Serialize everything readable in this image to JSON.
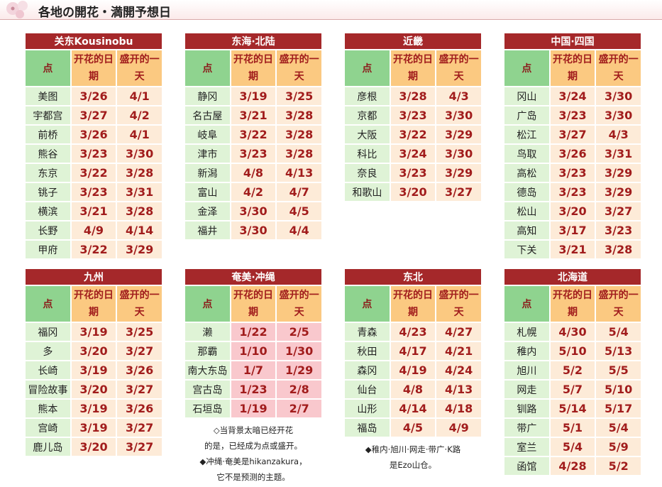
{
  "header": {
    "title": "各地の開花・満開予想日"
  },
  "regions": [
    {
      "name": "关东Kousinobu",
      "columns": [
        "点",
        "开花的日期",
        "盛开的一天"
      ],
      "date_color": "#fdebd8",
      "rows": [
        [
          "美图",
          "3/26",
          "4/1"
        ],
        [
          "宇都宫",
          "3/27",
          "4/2"
        ],
        [
          "前桥",
          "3/26",
          "4/1"
        ],
        [
          "熊谷",
          "3/23",
          "3/30"
        ],
        [
          "东京",
          "3/22",
          "3/28"
        ],
        [
          "铫子",
          "3/23",
          "3/31"
        ],
        [
          "横滨",
          "3/21",
          "3/28"
        ],
        [
          "长野",
          "4/9",
          "4/14"
        ],
        [
          "甲府",
          "3/22",
          "3/29"
        ]
      ]
    },
    {
      "name": "东海·北陆",
      "columns": [
        "点",
        "开花的日期",
        "盛开的一天"
      ],
      "date_color": "#fdebd8",
      "rows": [
        [
          "静冈",
          "3/19",
          "3/25"
        ],
        [
          "名古屋",
          "3/21",
          "3/28"
        ],
        [
          "岐阜",
          "3/22",
          "3/28"
        ],
        [
          "津市",
          "3/23",
          "3/28"
        ],
        [
          "新潟",
          "4/8",
          "4/13"
        ],
        [
          "富山",
          "4/2",
          "4/7"
        ],
        [
          "金泽",
          "3/30",
          "4/5"
        ],
        [
          "福井",
          "3/30",
          "4/4"
        ]
      ]
    },
    {
      "name": "近畿",
      "columns": [
        "点",
        "开花的日期",
        "盛开的一天"
      ],
      "date_color": "#fdebd8",
      "rows": [
        [
          "彦根",
          "3/28",
          "4/3"
        ],
        [
          "京都",
          "3/23",
          "3/30"
        ],
        [
          "大阪",
          "3/22",
          "3/29"
        ],
        [
          "科比",
          "3/24",
          "3/30"
        ],
        [
          "奈良",
          "3/23",
          "3/29"
        ],
        [
          "和歌山",
          "3/20",
          "3/27"
        ]
      ]
    },
    {
      "name": "中国·四国",
      "columns": [
        "点",
        "开花的日期",
        "盛开的一天"
      ],
      "date_color": "#fdebd8",
      "rows": [
        [
          "冈山",
          "3/24",
          "3/30"
        ],
        [
          "广岛",
          "3/23",
          "3/30"
        ],
        [
          "松江",
          "3/27",
          "4/3"
        ],
        [
          "鸟取",
          "3/26",
          "3/31"
        ],
        [
          "高松",
          "3/23",
          "3/29"
        ],
        [
          "德岛",
          "3/23",
          "3/29"
        ],
        [
          "松山",
          "3/20",
          "3/27"
        ],
        [
          "高知",
          "3/17",
          "3/23"
        ],
        [
          "下关",
          "3/21",
          "3/28"
        ]
      ]
    },
    {
      "name": "九州",
      "columns": [
        "点",
        "开花的日期",
        "盛开的一天"
      ],
      "date_color": "#fdebd8",
      "rows": [
        [
          "福冈",
          "3/19",
          "3/25"
        ],
        [
          "多",
          "3/20",
          "3/27"
        ],
        [
          "长崎",
          "3/19",
          "3/26"
        ],
        [
          "冒险故事",
          "3/20",
          "3/27"
        ],
        [
          "熊本",
          "3/19",
          "3/26"
        ],
        [
          "宫崎",
          "3/19",
          "3/27"
        ],
        [
          "鹿儿岛",
          "3/20",
          "3/27"
        ]
      ]
    },
    {
      "name": "奄美·冲绳",
      "columns": [
        "点",
        "开花的日期",
        "盛开的一天"
      ],
      "date_color": "#f9c8cd",
      "rows": [
        [
          "濑",
          "1/22",
          "2/5"
        ],
        [
          "那霸",
          "1/10",
          "1/30"
        ],
        [
          "南大东岛",
          "1/7",
          "1/29"
        ],
        [
          "宫古岛",
          "1/23",
          "2/8"
        ],
        [
          "石垣岛",
          "1/19",
          "2/7"
        ]
      ],
      "notes": [
        "◇当背景太暗已经开花",
        "的是，已经成为点或盛开。",
        "◆冲绳·奄美是hikanzakura，",
        "它不是预测的主题。"
      ]
    },
    {
      "name": "东北",
      "columns": [
        "点",
        "开花的日期",
        "盛开的一天"
      ],
      "date_color": "#fdebd8",
      "rows": [
        [
          "青森",
          "4/23",
          "4/27"
        ],
        [
          "秋田",
          "4/17",
          "4/21"
        ],
        [
          "森冈",
          "4/19",
          "4/24"
        ],
        [
          "仙台",
          "4/8",
          "4/13"
        ],
        [
          "山形",
          "4/14",
          "4/18"
        ],
        [
          "福岛",
          "4/5",
          "4/9"
        ]
      ],
      "notes": [
        "◆稚内·旭川·网走·带广·K路",
        "是Ezo山仓。"
      ]
    },
    {
      "name": "北海道",
      "columns": [
        "点",
        "开花的日期",
        "盛开的一天"
      ],
      "date_color": "#fdebd8",
      "rows": [
        [
          "札幌",
          "4/30",
          "5/4"
        ],
        [
          "稚内",
          "5/10",
          "5/13"
        ],
        [
          "旭川",
          "5/2",
          "5/5"
        ],
        [
          "网走",
          "5/7",
          "5/10"
        ],
        [
          "钏路",
          "5/14",
          "5/17"
        ],
        [
          "带广",
          "5/1",
          "5/4"
        ],
        [
          "室兰",
          "5/4",
          "5/9"
        ],
        [
          "函馆",
          "4/28",
          "5/2"
        ]
      ]
    }
  ]
}
